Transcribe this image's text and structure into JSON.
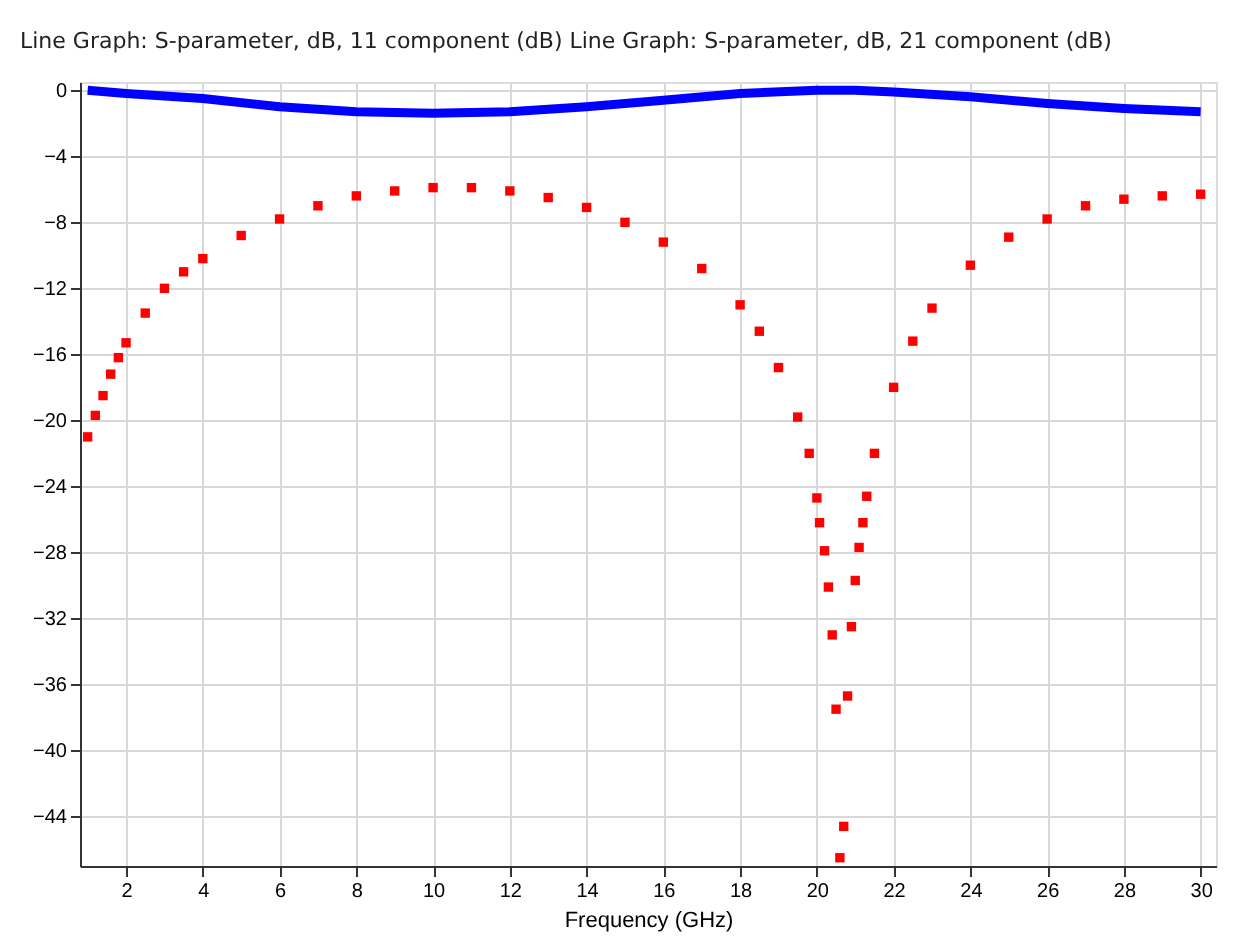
{
  "chart_data": {
    "type": "line",
    "title": "Line Graph: S-parameter, dB, 11 component (dB)  Line Graph: S-parameter, dB, 21 component (dB)",
    "xlabel": "Frequency (GHz)",
    "xlim": [
      0.8,
      30.4
    ],
    "ylim": [
      -47,
      0.5
    ],
    "xticks": [
      2,
      4,
      6,
      8,
      10,
      12,
      14,
      16,
      18,
      20,
      22,
      24,
      26,
      28,
      30
    ],
    "yticks": [
      0,
      -4,
      -8,
      -12,
      -16,
      -20,
      -24,
      -28,
      -32,
      -36,
      -40,
      -44
    ],
    "grid": true,
    "legend": false,
    "series": [
      {
        "type": "line",
        "color": "#0000ff",
        "line_style": "solid",
        "marker": "none",
        "x": [
          1,
          2,
          4,
          6,
          8,
          10,
          12,
          14,
          16,
          18,
          20,
          21,
          22,
          24,
          26,
          28,
          30
        ],
        "values": [
          0,
          -0.2,
          -0.5,
          -1,
          -1.3,
          -1.4,
          -1.3,
          -1,
          -0.6,
          -0.2,
          0,
          0,
          -0.1,
          -0.4,
          -0.8,
          -1.1,
          -1.3
        ]
      },
      {
        "type": "scatter",
        "color": "#ff0000",
        "marker": "square",
        "x": [
          1.0,
          1.2,
          1.4,
          1.6,
          1.8,
          2.0,
          2.5,
          3.0,
          3.5,
          4.0,
          5.0,
          6.0,
          7.0,
          8.0,
          9.0,
          10.0,
          11.0,
          12.0,
          13.0,
          14.0,
          15.0,
          16.0,
          17.0,
          18.0,
          18.5,
          19.0,
          19.5,
          19.8,
          20.0,
          20.07,
          20.2,
          20.3,
          20.4,
          20.5,
          20.6,
          20.7,
          20.8,
          20.9,
          21.0,
          21.1,
          21.2,
          21.3,
          21.5,
          22.0,
          22.5,
          23.0,
          24.0,
          25.0,
          26.0,
          27.0,
          28.0,
          29.0,
          30.0
        ],
        "values": [
          -21,
          -19.7,
          -18.5,
          -17.2,
          -16.2,
          -15.3,
          -13.5,
          -12,
          -11,
          -10.2,
          -8.8,
          -7.8,
          -7,
          -6.4,
          -6.1,
          -5.9,
          -5.9,
          -6.1,
          -6.5,
          -7.1,
          -8,
          -9.2,
          -10.8,
          -13,
          -14.6,
          -16.8,
          -19.8,
          -22,
          -24.7,
          -26.2,
          -27.9,
          -30.1,
          -33,
          -37.5,
          -46.5,
          -44.6,
          -36.7,
          -32.5,
          -29.7,
          -27.7,
          -26.2,
          -24.6,
          -22,
          -18,
          -15.2,
          -13.2,
          -10.6,
          -8.9,
          -7.8,
          -7,
          -6.6,
          -6.4,
          -6.3
        ]
      }
    ]
  }
}
